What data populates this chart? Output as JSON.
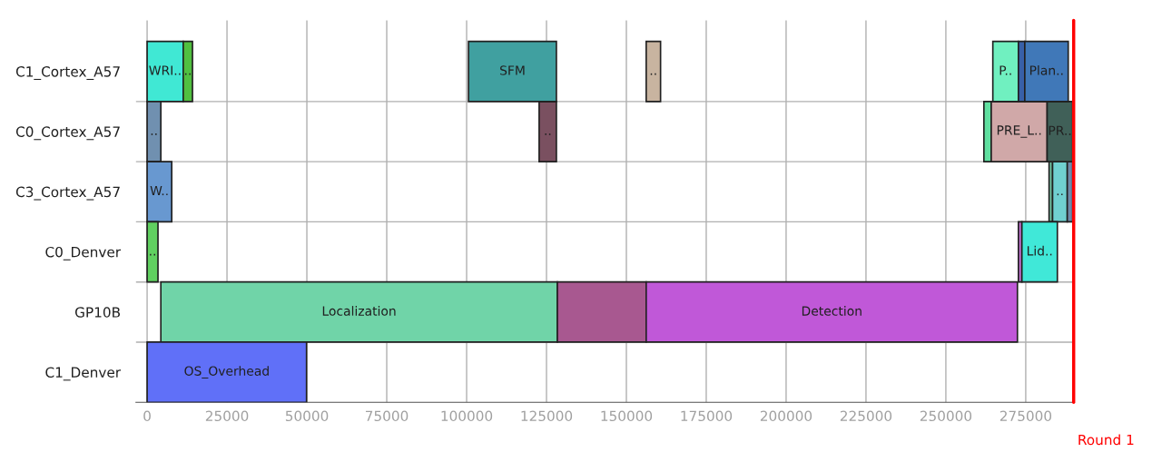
{
  "chart_data": {
    "type": "bar",
    "orientation": "horizontal",
    "categories": [
      "C1_Cortex_A57",
      "C0_Cortex_A57",
      "C3_Cortex_A57",
      "C0_Denver",
      "GP10B",
      "C1_Denver"
    ],
    "xlim": [
      -3500,
      290000
    ],
    "xticks": [
      0,
      25000,
      50000,
      75000,
      100000,
      125000,
      150000,
      175000,
      200000,
      225000,
      250000,
      275000
    ],
    "grid": true,
    "legend": false,
    "series": [
      {
        "colors": [
          "#40e8d4",
          "#7090b0",
          "#6898d0",
          "#60d060",
          "#70d4a8",
          "#6070f8"
        ],
        "base": [
          0,
          0,
          0,
          0,
          4300,
          0
        ],
        "values": [
          11300,
          4300,
          7700,
          3400,
          124100,
          49900
        ],
        "value_labels": [
          "WRI..",
          "..",
          "W..",
          "..",
          "Localization",
          "OS_Overhead"
        ]
      },
      {
        "colors": [
          "#50c040",
          "#7a5060",
          "#70c0a0",
          "#c070d0",
          "#a85890",
          null
        ],
        "base": [
          11300,
          122700,
          282300,
          272700,
          128400,
          null
        ],
        "values": [
          2900,
          5400,
          1100,
          1100,
          27800,
          null
        ],
        "value_labels": [
          "..",
          "..",
          null,
          null,
          null,
          null
        ]
      },
      {
        "colors": [
          "#40a0a0",
          "#60e0a0",
          "#70d0d0",
          "#40e8d8",
          "#c058d8",
          null
        ],
        "base": [
          100600,
          261900,
          283400,
          273800,
          156200,
          null
        ],
        "values": [
          27500,
          2300,
          4600,
          11100,
          116200,
          null
        ],
        "value_labels": [
          "SFM",
          null,
          "..",
          "Lid..",
          "Detection",
          null
        ]
      },
      {
        "colors": [
          "#c8b4a0",
          "#d0a8a8",
          "#7088a8",
          null,
          null,
          null
        ],
        "base": [
          156200,
          264200,
          288000,
          null,
          null,
          null
        ],
        "values": [
          4500,
          17500,
          1700,
          null,
          null,
          null
        ],
        "value_labels": [
          "..",
          "PRE_L..",
          null,
          null,
          null,
          null
        ]
      },
      {
        "colors": [
          "#70f0c0",
          "#406058",
          null,
          null,
          null,
          null
        ],
        "base": [
          264700,
          281700,
          null,
          null,
          null,
          null
        ],
        "values": [
          8000,
          8000,
          null,
          null,
          null,
          null
        ],
        "value_labels": [
          "P..",
          "PR..",
          null,
          null,
          null,
          null
        ]
      },
      {
        "colors": [
          "#3860a8",
          null,
          null,
          null,
          null,
          null
        ],
        "base": [
          272700,
          null,
          null,
          null,
          null,
          null
        ],
        "values": [
          2000,
          null,
          null,
          null,
          null,
          null
        ],
        "value_labels": [
          null,
          null,
          null,
          null,
          null,
          null
        ]
      },
      {
        "colors": [
          "#4078b8",
          null,
          null,
          null,
          null,
          null
        ],
        "base": [
          274700,
          null,
          null,
          null,
          null,
          null
        ],
        "values": [
          13600,
          null,
          null,
          null,
          null,
          null
        ],
        "value_labels": [
          "Plan..",
          null,
          null,
          null,
          null,
          null
        ]
      }
    ],
    "ref_lines": [
      {
        "axis": "x",
        "value": 290000,
        "label": "Round 1",
        "color": "#ff0000"
      }
    ]
  }
}
